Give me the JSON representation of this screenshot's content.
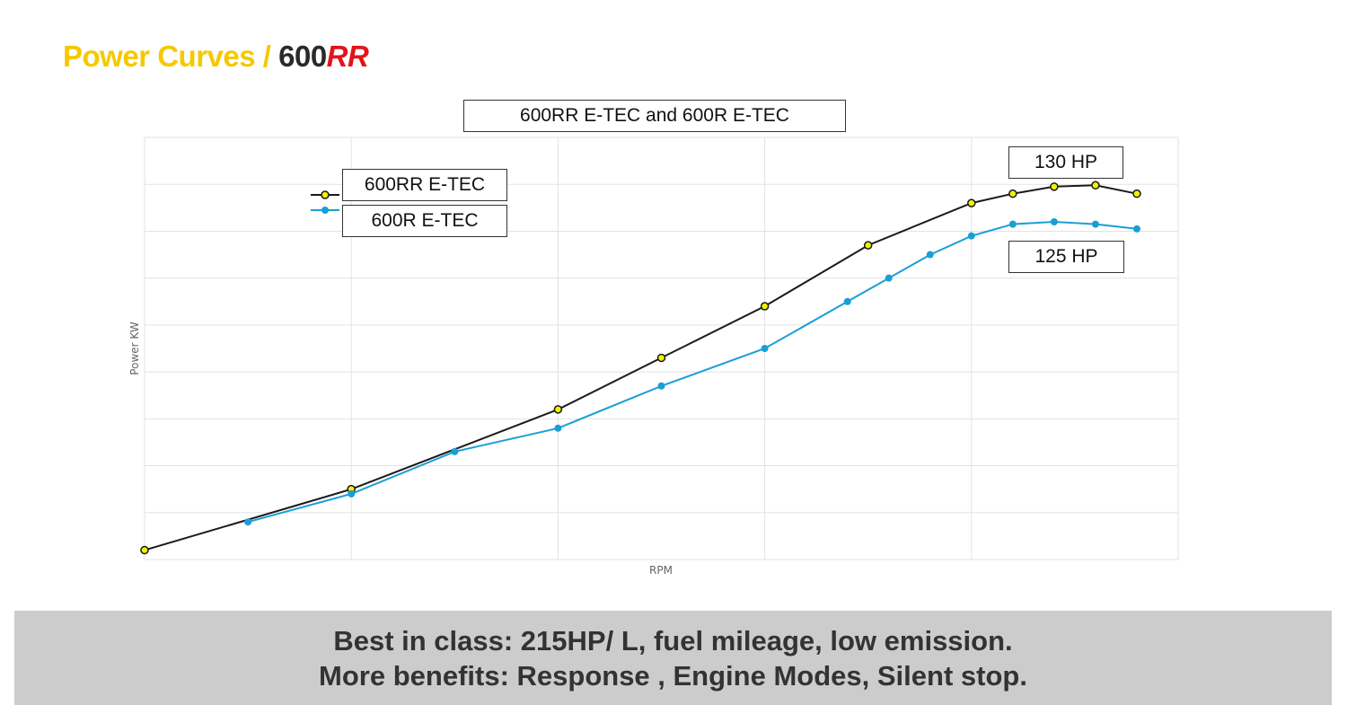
{
  "header": {
    "title_main": "Power Curves / ",
    "title_model": "600",
    "title_suffix": "RR"
  },
  "chart_data": {
    "type": "line",
    "title": "600RR E-TEC and 600R E-TEC",
    "xlabel": "RPM",
    "ylabel": "Power KW",
    "grid": true,
    "legend_position": "top-left",
    "series": [
      {
        "name": "600RR E-TEC",
        "color": "#1a1a1a",
        "marker_color": "#f2f200",
        "points": [
          [
            0.0,
            0.2
          ],
          [
            1.0,
            1.5
          ],
          [
            2.0,
            3.2
          ],
          [
            2.5,
            4.3
          ],
          [
            3.0,
            5.4
          ],
          [
            3.5,
            6.7
          ],
          [
            4.0,
            7.6
          ],
          [
            4.2,
            7.8
          ],
          [
            4.4,
            7.95
          ],
          [
            4.6,
            7.98
          ],
          [
            4.8,
            7.8
          ]
        ]
      },
      {
        "name": "600R E-TEC",
        "color": "#1a9fd5",
        "marker_color": "#1a9fd5",
        "points": [
          [
            0.5,
            0.8
          ],
          [
            1.0,
            1.4
          ],
          [
            1.5,
            2.3
          ],
          [
            2.0,
            2.8
          ],
          [
            2.5,
            3.7
          ],
          [
            3.0,
            4.5
          ],
          [
            3.4,
            5.5
          ],
          [
            3.6,
            6.0
          ],
          [
            3.8,
            6.5
          ],
          [
            4.0,
            6.9
          ],
          [
            4.2,
            7.15
          ],
          [
            4.4,
            7.2
          ],
          [
            4.6,
            7.15
          ],
          [
            4.8,
            7.05
          ]
        ]
      }
    ],
    "x_range": [
      0,
      5
    ],
    "y_range": [
      0,
      9
    ],
    "annotations": [
      {
        "id": "rr_peak",
        "text": "130 HP"
      },
      {
        "id": "r_peak",
        "text": "125 HP"
      }
    ]
  },
  "footer": {
    "line1": "Best in class: 215HP/ L, fuel mileage, low emission.",
    "line2": "More benefits: Response , Engine Modes, Silent stop."
  }
}
